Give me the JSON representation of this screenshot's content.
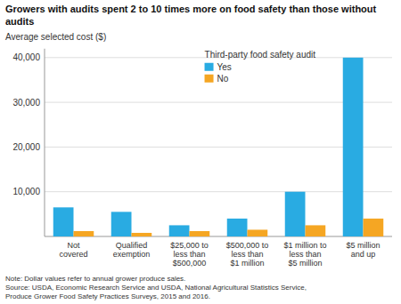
{
  "chart_data": {
    "type": "bar",
    "title": "Growers with audits spent 2 to 10 times more on food safety than those without audits",
    "y_label": "Average selected cost ($)",
    "categories": [
      "Not\ncovered",
      "Qualified\nexemption",
      "$25,000 to\nless than\n$500,000",
      "$500,000 to\nless than\n$1 million",
      "$1 million to\nless than\n$5 million",
      "$5 million\nand up"
    ],
    "series": [
      {
        "name": "Yes",
        "color": "#29ABE2",
        "values": [
          6500,
          5500,
          2500,
          4000,
          10000,
          40000
        ]
      },
      {
        "name": "No",
        "color": "#F5A623",
        "values": [
          1200,
          800,
          1200,
          1500,
          2500,
          4000
        ]
      }
    ],
    "legend_title": "Third-party food safety audit",
    "legend": "top",
    "ylim": [
      0,
      42000
    ],
    "yticks": [
      {
        "value": 10000,
        "label": "10,000"
      },
      {
        "value": 20000,
        "label": "20,000"
      },
      {
        "value": 30000,
        "label": "30,000"
      },
      {
        "value": 40000,
        "label": "40,000"
      }
    ],
    "grid": true,
    "notes": [
      "Note: Dollar values refer to annual grower produce sales.",
      "Source: USDA, Economic Research Service and USDA, National Agricultural Statistics Service,",
      "Produce Grower Food Safety Practices Surveys, 2015 and 2016."
    ]
  }
}
